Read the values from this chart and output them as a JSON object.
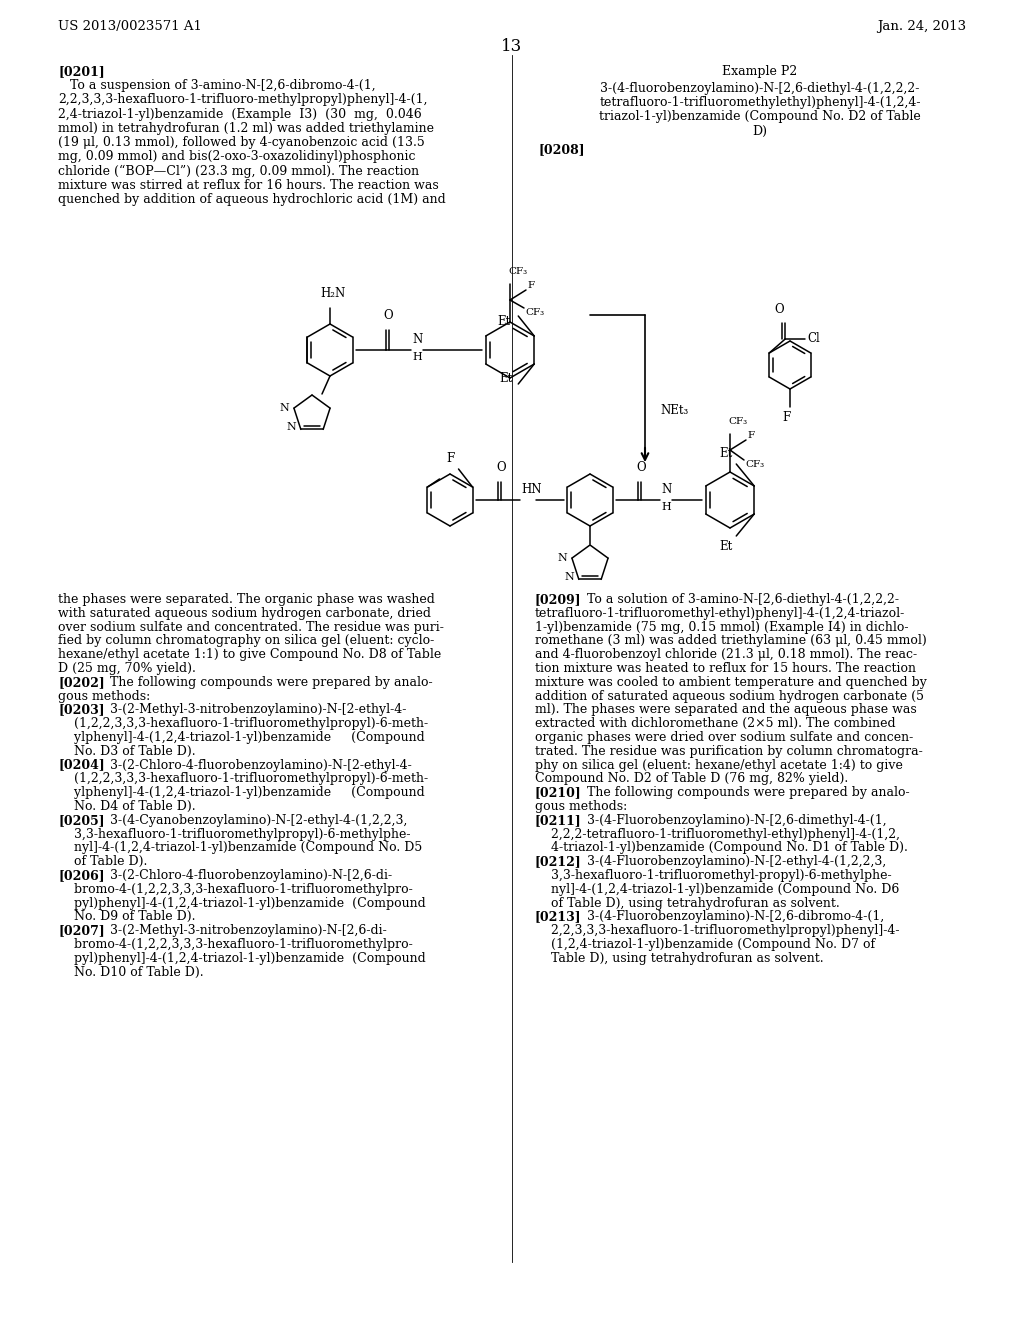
{
  "header_left": "US 2013/0023571 A1",
  "header_right": "Jan. 24, 2013",
  "page_number": "13",
  "background_color": "#ffffff",
  "text_color": "#000000",
  "left_col_top": [
    {
      "bold": true,
      "text": "[0201]",
      "indent": 0
    },
    {
      "bold": false,
      "text": "   To a suspension of 3-amino-N-[2,6-dibromo-4-(1,",
      "indent": 0
    },
    {
      "bold": false,
      "text": "2,2,3,3,3-hexafluoro-1-trifluoro-methylpropyl)phenyl]-4-(1,",
      "indent": 0
    },
    {
      "bold": false,
      "text": "2,4-triazol-1-yl)benzamide  (Example  I3)  (30  mg,  0.046",
      "indent": 0
    },
    {
      "bold": false,
      "text": "mmol) in tetrahydrofuran (1.2 ml) was added triethylamine",
      "indent": 0
    },
    {
      "bold": false,
      "text": "(19 μl, 0.13 mmol), followed by 4-cyanobenzoic acid (13.5",
      "indent": 0
    },
    {
      "bold": false,
      "text": "mg, 0.09 mmol) and bis(2-oxo-3-oxazolidinyl)phosphonic",
      "indent": 0
    },
    {
      "bold": false,
      "text": "chloride (“BOP—Cl”) (23.3 mg, 0.09 mmol). The reaction",
      "indent": 0
    },
    {
      "bold": false,
      "text": "mixture was stirred at reflux for 16 hours. The reaction was",
      "indent": 0
    },
    {
      "bold": false,
      "text": "quenched by addition of aqueous hydrochloric acid (1M) and",
      "indent": 0
    }
  ],
  "right_col_top_header": "Example P2",
  "right_col_top_title": [
    "3-(4-fluorobenzoylamino)-N-[2,6-diethyl-4-(1,2,2,2-",
    "tetrafluoro-1-trifluoromethylethyl)phenyl]-4-(1,2,4-",
    "triazol-1-yl)benzamide (Compound No. D2 of Table",
    "D)"
  ],
  "para_0208": "[0208]",
  "left_col_bottom": [
    {
      "bold": false,
      "text": "the phases were separated. The organic phase was washed"
    },
    {
      "bold": false,
      "text": "with saturated aqueous sodium hydrogen carbonate, dried"
    },
    {
      "bold": false,
      "text": "over sodium sulfate and concentrated. The residue was puri-"
    },
    {
      "bold": false,
      "text": "fied by column chromatography on silica gel (eluent: cyclo-"
    },
    {
      "bold": false,
      "text": "hexane/ethyl acetate 1:1) to give Compound No. D8 of Table"
    },
    {
      "bold": false,
      "text": "D (25 mg, 70% yield)."
    },
    {
      "bold": true,
      "text": "[0202]",
      "suffix": "    The following compounds were prepared by analo-"
    },
    {
      "bold": false,
      "text": "gous methods:"
    },
    {
      "bold": true,
      "text": "[0203]",
      "suffix": "    3-(2-Methyl-3-nitrobenzoylamino)-N-[2-ethyl-4-"
    },
    {
      "bold": false,
      "text": "    (1,2,2,3,3,3-hexafluoro-1-trifluoromethylpropyl)-6-meth-"
    },
    {
      "bold": false,
      "text": "    ylphenyl]-4-(1,2,4-triazol-1-yl)benzamide     (Compound"
    },
    {
      "bold": false,
      "text": "    No. D3 of Table D)."
    },
    {
      "bold": true,
      "text": "[0204]",
      "suffix": "    3-(2-Chloro-4-fluorobenzoylamino)-N-[2-ethyl-4-"
    },
    {
      "bold": false,
      "text": "    (1,2,2,3,3,3-hexafluoro-1-trifluoromethylpropyl)-6-meth-"
    },
    {
      "bold": false,
      "text": "    ylphenyl]-4-(1,2,4-triazol-1-yl)benzamide     (Compound"
    },
    {
      "bold": false,
      "text": "    No. D4 of Table D)."
    },
    {
      "bold": true,
      "text": "[0205]",
      "suffix": "    3-(4-Cyanobenzoylamino)-N-[2-ethyl-4-(1,2,2,3,"
    },
    {
      "bold": false,
      "text": "    3,3-hexafluoro-1-trifluoromethylpropyl)-6-methylphe-"
    },
    {
      "bold": false,
      "text": "    nyl]-4-(1,2,4-triazol-1-yl)benzamide (Compound No. D5"
    },
    {
      "bold": false,
      "text": "    of Table D)."
    },
    {
      "bold": true,
      "text": "[0206]",
      "suffix": "    3-(2-Chloro-4-fluorobenzoylamino)-N-[2,6-di-"
    },
    {
      "bold": false,
      "text": "    bromo-4-(1,2,2,3,3,3-hexafluoro-1-trifluoromethylpro-"
    },
    {
      "bold": false,
      "text": "    pyl)phenyl]-4-(1,2,4-triazol-1-yl)benzamide  (Compound"
    },
    {
      "bold": false,
      "text": "    No. D9 of Table D)."
    },
    {
      "bold": true,
      "text": "[0207]",
      "suffix": "    3-(2-Methyl-3-nitrobenzoylamino)-N-[2,6-di-"
    },
    {
      "bold": false,
      "text": "    bromo-4-(1,2,2,3,3,3-hexafluoro-1-trifluoromethylpro-"
    },
    {
      "bold": false,
      "text": "    pyl)phenyl]-4-(1,2,4-triazol-1-yl)benzamide  (Compound"
    },
    {
      "bold": false,
      "text": "    No. D10 of Table D)."
    }
  ],
  "right_col_bottom": [
    {
      "bold": true,
      "text": "[0209]",
      "suffix": "    To a solution of 3-amino-N-[2,6-diethyl-4-(1,2,2,2-"
    },
    {
      "bold": false,
      "text": "tetrafluoro-1-trifluoromethyl-ethyl)phenyl]-4-(1,2,4-triazol-"
    },
    {
      "bold": false,
      "text": "1-yl)benzamide (75 mg, 0.15 mmol) (Example I4) in dichlo-"
    },
    {
      "bold": false,
      "text": "romethane (3 ml) was added triethylamine (63 μl, 0.45 mmol)"
    },
    {
      "bold": false,
      "text": "and 4-fluorobenzoyl chloride (21.3 μl, 0.18 mmol). The reac-"
    },
    {
      "bold": false,
      "text": "tion mixture was heated to reflux for 15 hours. The reaction"
    },
    {
      "bold": false,
      "text": "mixture was cooled to ambient temperature and quenched by"
    },
    {
      "bold": false,
      "text": "addition of saturated aqueous sodium hydrogen carbonate (5"
    },
    {
      "bold": false,
      "text": "ml). The phases were separated and the aqueous phase was"
    },
    {
      "bold": false,
      "text": "extracted with dichloromethane (2×5 ml). The combined"
    },
    {
      "bold": false,
      "text": "organic phases were dried over sodium sulfate and concen-"
    },
    {
      "bold": false,
      "text": "trated. The residue was purification by column chromatogra-"
    },
    {
      "bold": false,
      "text": "phy on silica gel (eluent: hexane/ethyl acetate 1:4) to give"
    },
    {
      "bold": false,
      "text": "Compound No. D2 of Table D (76 mg, 82% yield)."
    },
    {
      "bold": true,
      "text": "[0210]",
      "suffix": "    The following compounds were prepared by analo-"
    },
    {
      "bold": false,
      "text": "gous methods:"
    },
    {
      "bold": true,
      "text": "[0211]",
      "suffix": "    3-(4-Fluorobenzoylamino)-N-[2,6-dimethyl-4-(1,"
    },
    {
      "bold": false,
      "text": "    2,2,2-tetrafluoro-1-trifluoromethyl-ethyl)phenyl]-4-(1,2,"
    },
    {
      "bold": false,
      "text": "    4-triazol-1-yl)benzamide (Compound No. D1 of Table D)."
    },
    {
      "bold": true,
      "text": "[0212]",
      "suffix": "    3-(4-Fluorobenzoylamino)-N-[2-ethyl-4-(1,2,2,3,"
    },
    {
      "bold": false,
      "text": "    3,3-hexafluoro-1-trifluoromethyl-propyl)-6-methylphe-"
    },
    {
      "bold": false,
      "text": "    nyl]-4-(1,2,4-triazol-1-yl)benzamide (Compound No. D6"
    },
    {
      "bold": false,
      "text": "    of Table D), using tetrahydrofuran as solvent."
    },
    {
      "bold": true,
      "text": "[0213]",
      "suffix": "    3-(4-Fluorobenzoylamino)-N-[2,6-dibromo-4-(1,"
    },
    {
      "bold": false,
      "text": "    2,2,3,3,3-hexafluoro-1-trifluoromethylpropyl)phenyl]-4-"
    },
    {
      "bold": false,
      "text": "    (1,2,4-triazol-1-yl)benzamide (Compound No. D7 of"
    },
    {
      "bold": false,
      "text": "    Table D), using tetrahydrofuran as solvent."
    }
  ]
}
